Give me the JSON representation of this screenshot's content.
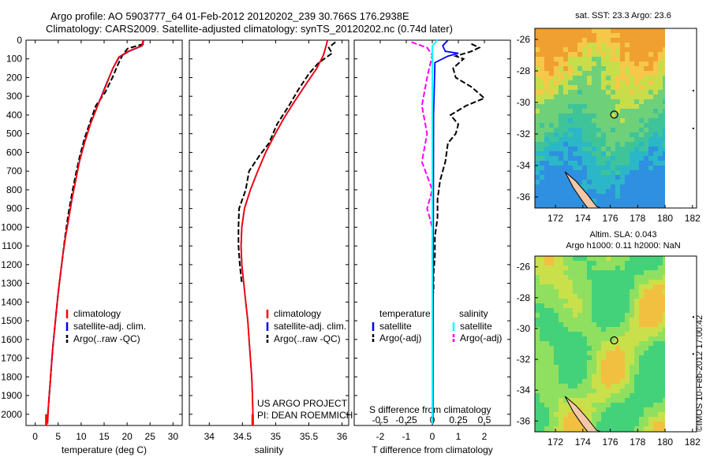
{
  "header": {
    "line1": "Argo profile: AO 5903777_64 01-Feb-2012 20120202_239 30.766S 176.2938E",
    "line2": "Climatology: CARS2009. Satellite-adjusted climatology: synTS_20120202.nc (0.74d later)"
  },
  "side_label": "©IMOS 10-Feb-2012 17:00:42",
  "colors": {
    "climatology": "#ff0000",
    "satellite": "#0000ff",
    "argo": "#000000",
    "t_sat": "#00ffff",
    "s_argo": "#ff00ff"
  },
  "depth_axis": {
    "ticks": [
      0,
      100,
      200,
      300,
      400,
      500,
      600,
      700,
      800,
      900,
      1000,
      1100,
      1200,
      1300,
      1400,
      1500,
      1600,
      1700,
      1800,
      1900,
      2000
    ],
    "ylim": [
      0,
      2060
    ]
  },
  "chart_data": [
    {
      "type": "line",
      "xlabel": "temperature (deg C)",
      "xlim": [
        -2,
        32
      ],
      "xticks": [
        0,
        5,
        10,
        15,
        20,
        25,
        30
      ],
      "legend": [
        "climatology",
        "satellite-adj. clim.",
        "Argo(..raw -QC)"
      ],
      "series": [
        {
          "name": "climatology",
          "style": "solid",
          "color": "#ff0000",
          "points": [
            [
              23.5,
              0
            ],
            [
              23.2,
              30
            ],
            [
              20.2,
              60
            ],
            [
              18.2,
              90
            ],
            [
              16.9,
              150
            ],
            [
              15.3,
              250
            ],
            [
              13.6,
              350
            ],
            [
              12.0,
              450
            ],
            [
              10.7,
              550
            ],
            [
              9.6,
              650
            ],
            [
              8.8,
              750
            ],
            [
              8.0,
              850
            ],
            [
              7.3,
              950
            ],
            [
              6.6,
              1050
            ],
            [
              6.0,
              1150
            ],
            [
              5.5,
              1250
            ],
            [
              5.0,
              1350
            ],
            [
              4.6,
              1450
            ],
            [
              4.2,
              1550
            ],
            [
              3.8,
              1650
            ],
            [
              3.5,
              1750
            ],
            [
              3.2,
              1850
            ],
            [
              2.9,
              1950
            ],
            [
              2.7,
              2050
            ]
          ]
        },
        {
          "name": "satellite-adj. clim.",
          "style": "solid",
          "color": "#0000ff",
          "points": [
            [
              23.6,
              0
            ],
            [
              23.3,
              30
            ],
            [
              20.4,
              60
            ],
            [
              18.3,
              90
            ],
            [
              16.9,
              150
            ],
            [
              15.2,
              250
            ],
            [
              13.6,
              350
            ],
            [
              12.0,
              450
            ],
            [
              10.7,
              550
            ],
            [
              9.6,
              650
            ],
            [
              8.8,
              750
            ],
            [
              8.0,
              850
            ],
            [
              7.3,
              950
            ],
            [
              6.6,
              1050
            ],
            [
              6.0,
              1150
            ],
            [
              5.5,
              1250
            ],
            [
              5.0,
              1350
            ],
            [
              4.6,
              1450
            ],
            [
              4.2,
              1550
            ],
            [
              3.8,
              1650
            ],
            [
              3.5,
              1750
            ],
            [
              3.2,
              1850
            ],
            [
              2.9,
              1950
            ],
            [
              2.6,
              2040
            ]
          ]
        },
        {
          "name": "Argo(..raw -QC)",
          "style": "dashed",
          "color": "#000000",
          "points": [
            [
              23.6,
              20
            ],
            [
              20.1,
              45
            ],
            [
              19.0,
              80
            ],
            [
              18.2,
              120
            ],
            [
              16.8,
              200
            ],
            [
              15.2,
              280
            ],
            [
              13.2,
              350
            ],
            [
              12.2,
              420
            ],
            [
              10.8,
              520
            ],
            [
              9.7,
              620
            ],
            [
              8.8,
              720
            ],
            [
              8.0,
              820
            ],
            [
              7.2,
              930
            ],
            [
              6.5,
              1050
            ],
            [
              6.0,
              1150
            ],
            [
              5.5,
              1250
            ],
            [
              5.0,
              1350
            ],
            [
              4.6,
              1450
            ],
            [
              4.2,
              1550
            ],
            [
              3.8,
              1650
            ],
            [
              3.5,
              1750
            ],
            [
              3.2,
              1850
            ],
            [
              2.9,
              1950
            ]
          ]
        }
      ]
    },
    {
      "type": "line",
      "xlabel": "salinity",
      "xlim": [
        33.7,
        36.1
      ],
      "xticks": [
        34,
        34.5,
        35,
        35.5,
        36
      ],
      "xticklabels": [
        "34",
        "34.5",
        "35",
        "35.5",
        "36"
      ],
      "legend": [
        "climatology",
        "satellite-adj. clim.",
        "Argo(..raw -QC)"
      ],
      "annotations": [
        "US ARGO PROJECT",
        "PI: DEAN ROEMMICH"
      ],
      "series": [
        {
          "name": "climatology",
          "style": "solid",
          "color": "#ff0000",
          "points": [
            [
              35.78,
              0
            ],
            [
              35.76,
              30
            ],
            [
              35.72,
              80
            ],
            [
              35.62,
              150
            ],
            [
              35.43,
              250
            ],
            [
              35.28,
              330
            ],
            [
              35.12,
              420
            ],
            [
              34.98,
              510
            ],
            [
              34.85,
              600
            ],
            [
              34.73,
              700
            ],
            [
              34.62,
              800
            ],
            [
              34.53,
              900
            ],
            [
              34.49,
              1000
            ],
            [
              34.48,
              1100
            ],
            [
              34.49,
              1200
            ],
            [
              34.52,
              1300
            ],
            [
              34.55,
              1400
            ],
            [
              34.58,
              1500
            ],
            [
              34.6,
              1600
            ],
            [
              34.62,
              1700
            ],
            [
              34.64,
              1800
            ],
            [
              34.65,
              1900
            ],
            [
              34.66,
              2050
            ]
          ]
        },
        {
          "name": "satellite-adj. clim.",
          "style": "solid",
          "color": "#0000ff",
          "points": [
            [
              35.78,
              0
            ],
            [
              35.76,
              30
            ],
            [
              35.72,
              80
            ],
            [
              35.62,
              150
            ],
            [
              35.43,
              250
            ],
            [
              35.28,
              330
            ],
            [
              35.12,
              420
            ],
            [
              34.98,
              510
            ],
            [
              34.85,
              600
            ],
            [
              34.73,
              700
            ],
            [
              34.62,
              800
            ],
            [
              34.53,
              900
            ],
            [
              34.49,
              1000
            ],
            [
              34.48,
              1100
            ],
            [
              34.49,
              1200
            ],
            [
              34.52,
              1300
            ],
            [
              34.55,
              1400
            ],
            [
              34.58,
              1500
            ],
            [
              34.6,
              1600
            ],
            [
              34.62,
              1700
            ],
            [
              34.64,
              1800
            ],
            [
              34.65,
              1900
            ],
            [
              34.66,
              2050
            ]
          ]
        },
        {
          "name": "Argo(..raw -QC)",
          "style": "dashed",
          "color": "#000000",
          "points": [
            [
              35.9,
              10
            ],
            [
              35.8,
              40
            ],
            [
              35.85,
              70
            ],
            [
              35.65,
              120
            ],
            [
              35.5,
              180
            ],
            [
              35.35,
              260
            ],
            [
              35.2,
              350
            ],
            [
              35.02,
              450
            ],
            [
              34.9,
              550
            ],
            [
              34.75,
              620
            ],
            [
              34.6,
              700
            ],
            [
              34.55,
              800
            ],
            [
              34.45,
              900
            ],
            [
              34.44,
              1000
            ],
            [
              34.44,
              1100
            ],
            [
              34.46,
              1200
            ],
            [
              34.49,
              1300
            ]
          ]
        }
      ]
    },
    {
      "type": "line",
      "xlabel": "T difference from climatology",
      "xlabel_s": "S difference from climatology",
      "xlim": [
        -3,
        3
      ],
      "xticks": [
        -2,
        -1,
        0,
        1,
        2
      ],
      "sticks": [
        -0.5,
        -0.25,
        0,
        0.25,
        0.5
      ],
      "sticklabels": [
        "-0.5",
        "-0.25",
        "0",
        "0.25",
        "0.5"
      ],
      "legend_titles": [
        "temperature",
        "salinity"
      ],
      "legend": [
        "satellite",
        "Argo(-adj)",
        "satellite",
        "Argo(-adj)"
      ],
      "series": [
        {
          "name": "satellite",
          "quantity": "temperature",
          "style": "solid",
          "color": "#0000ff",
          "points": [
            [
              0.6,
              0
            ],
            [
              0.4,
              30
            ],
            [
              0.5,
              60
            ],
            [
              1.0,
              70
            ],
            [
              0.6,
              85
            ],
            [
              0.1,
              120
            ],
            [
              0.05,
              400
            ],
            [
              0.02,
              2050
            ]
          ]
        },
        {
          "name": "Argo(-adj)",
          "quantity": "temperature",
          "style": "dashed",
          "color": "#000000",
          "points": [
            [
              1.5,
              20
            ],
            [
              1.8,
              40
            ],
            [
              1.5,
              60
            ],
            [
              0.9,
              85
            ],
            [
              1.2,
              100
            ],
            [
              0.8,
              150
            ],
            [
              0.9,
              200
            ],
            [
              1.5,
              250
            ],
            [
              2.0,
              310
            ],
            [
              1.3,
              350
            ],
            [
              0.7,
              400
            ],
            [
              1.0,
              450
            ],
            [
              0.9,
              500
            ],
            [
              0.6,
              550
            ],
            [
              0.5,
              650
            ],
            [
              0.3,
              750
            ],
            [
              0.2,
              850
            ],
            [
              0.2,
              950
            ],
            [
              0.1,
              1050
            ],
            [
              0.1,
              1150
            ],
            [
              0.05,
              1250
            ],
            [
              0.05,
              1350
            ]
          ]
        },
        {
          "name": "satellite",
          "quantity": "salinity",
          "style": "solid",
          "color": "#00ffff",
          "points": [
            [
              0.05,
              0
            ],
            [
              0.0,
              30
            ],
            [
              0.0,
              200
            ],
            [
              0.0,
              2050
            ]
          ]
        },
        {
          "name": "Argo(-adj)",
          "quantity": "salinity",
          "style": "dashed",
          "color": "#ff00ff",
          "points": [
            [
              -0.2,
              10
            ],
            [
              -0.05,
              40
            ],
            [
              0.0,
              80
            ],
            [
              -0.05,
              200
            ],
            [
              -0.1,
              350
            ],
            [
              -0.05,
              500
            ],
            [
              -0.1,
              650
            ],
            [
              0.0,
              800
            ],
            [
              -0.05,
              900
            ],
            [
              0.0,
              1000
            ],
            [
              0.0,
              1100
            ],
            [
              0.0,
              1200
            ]
          ]
        }
      ]
    },
    {
      "type": "heatmap",
      "title": "sat. SST: 23.3  Argo: 23.6",
      "xticks": [
        172,
        174,
        176,
        178,
        180,
        182
      ],
      "yticks": [
        -26,
        -28,
        -30,
        -32,
        -34,
        -36
      ],
      "xlim": [
        170.5,
        182.3
      ],
      "ylim": [
        -36.7,
        -25.3
      ],
      "marker": {
        "lon": 176.29,
        "lat": -30.77
      }
    },
    {
      "type": "heatmap",
      "title": "Altim. SLA: 0.043",
      "subtitle": "Argo h1000: 0.11  h2000: NaN",
      "xticks": [
        172,
        174,
        176,
        178,
        180,
        182
      ],
      "yticks": [
        -26,
        -28,
        -30,
        -32,
        -34,
        -36
      ],
      "xlim": [
        170.5,
        182.3
      ],
      "ylim": [
        -36.7,
        -25.3
      ],
      "marker": {
        "lon": 176.29,
        "lat": -30.77
      }
    }
  ]
}
